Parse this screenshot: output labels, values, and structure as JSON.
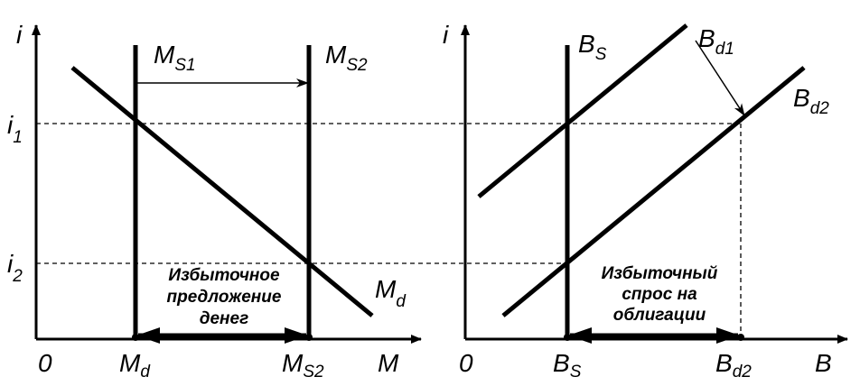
{
  "left_panel": {
    "y_axis_label": "i",
    "x_axis_label": "M",
    "origin": "0",
    "i1": {
      "main": "i",
      "sub": "1"
    },
    "i2": {
      "main": "i",
      "sub": "2"
    },
    "supply1": {
      "main": "M",
      "sub": "S1"
    },
    "supply2": {
      "main": "M",
      "sub": "S2"
    },
    "demand": {
      "main": "M",
      "sub": "d"
    },
    "x_md": {
      "main": "M",
      "sub": "d"
    },
    "x_ms2": {
      "main": "M",
      "sub": "S2"
    },
    "note": [
      "Избыточное",
      "предложение",
      "денег"
    ]
  },
  "right_panel": {
    "y_axis_label": "i",
    "x_axis_label": "B",
    "origin": "0",
    "supply": {
      "main": "B",
      "sub": "S"
    },
    "demand1": {
      "main": "B",
      "sub": "d1"
    },
    "demand2": {
      "main": "B",
      "sub": "d2"
    },
    "x_bs": {
      "main": "B",
      "sub": "S"
    },
    "x_bd2": {
      "main": "B",
      "sub": "d2"
    },
    "note": [
      "Избыточный",
      "спрос на",
      "облигации"
    ]
  }
}
